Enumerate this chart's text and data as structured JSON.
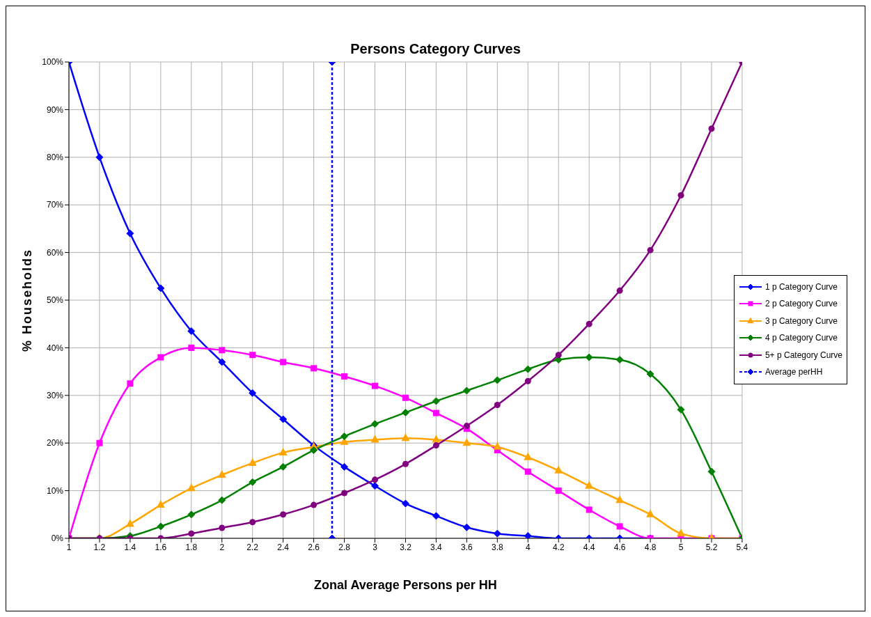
{
  "chart_data": {
    "type": "line",
    "title": "Persons Category Curves",
    "xlabel": "Zonal Average Persons per HH",
    "ylabel": "% Households",
    "x": [
      1,
      1.2,
      1.4,
      1.6,
      1.8,
      2,
      2.2,
      2.4,
      2.6,
      2.8,
      3,
      3.2,
      3.4,
      3.6,
      3.8,
      4,
      4.2,
      4.4,
      4.6,
      4.8,
      5,
      5.2,
      5.4
    ],
    "series": [
      {
        "name": "1 p Category Curve",
        "color": "#0000ff",
        "marker": "diamond",
        "values": [
          100,
          80,
          64,
          52.5,
          43.5,
          37,
          30.5,
          25,
          19.5,
          15,
          11,
          7.3,
          4.7,
          2.3,
          1,
          0.5,
          0,
          0,
          0,
          0,
          null,
          null,
          null
        ]
      },
      {
        "name": "2 p Category Curve",
        "color": "#ff00ff",
        "marker": "square",
        "values": [
          0,
          20,
          32.5,
          38,
          40,
          39.5,
          38.5,
          37,
          35.7,
          34,
          32,
          29.5,
          26.3,
          23,
          18.5,
          14,
          10,
          6,
          2.5,
          0,
          0,
          0,
          0
        ]
      },
      {
        "name": "3 p Category Curve",
        "color": "#ffa500",
        "marker": "triangle",
        "values": [
          0,
          0,
          3,
          7,
          10.5,
          13.3,
          15.8,
          18,
          19.2,
          20.2,
          20.7,
          21,
          20.7,
          20,
          19.2,
          17,
          14.2,
          11,
          8,
          5,
          1,
          0,
          0
        ]
      },
      {
        "name": "4 p Category Curve",
        "color": "#008000",
        "marker": "diamond",
        "values": [
          0,
          0,
          0.5,
          2.5,
          5,
          8,
          11.8,
          15,
          18.5,
          21.4,
          24,
          26.4,
          28.8,
          31,
          33.2,
          35.5,
          37.5,
          38,
          37.5,
          34.5,
          27,
          14,
          0
        ]
      },
      {
        "name": "5+ p Category Curve",
        "color": "#800080",
        "marker": "circle",
        "values": [
          0,
          0,
          0,
          0,
          1,
          2.2,
          3.4,
          5,
          7,
          9.5,
          12.3,
          15.6,
          19.5,
          23.6,
          28,
          33,
          38.5,
          45,
          52,
          60.5,
          72,
          86,
          100
        ]
      },
      {
        "name": "Average perHH",
        "color": "#0000ff",
        "marker": "diamond",
        "line_style": "dashed",
        "x": [
          2.72,
          2.72
        ],
        "values": [
          0,
          100
        ]
      }
    ],
    "xlim": [
      1,
      5.4
    ],
    "xticks": [
      1,
      1.2,
      1.4,
      1.6,
      1.8,
      2,
      2.2,
      2.4,
      2.6,
      2.8,
      3,
      3.2,
      3.4,
      3.6,
      3.8,
      4,
      4.2,
      4.4,
      4.6,
      4.8,
      5,
      5.2,
      5.4
    ],
    "ylim": [
      0,
      100
    ],
    "yticks": [
      {
        "value": 0,
        "label": "0%"
      },
      {
        "value": 10,
        "label": "10%"
      },
      {
        "value": 20,
        "label": "20%"
      },
      {
        "value": 30,
        "label": "30%"
      },
      {
        "value": 40,
        "label": "40%"
      },
      {
        "value": 50,
        "label": "50%"
      },
      {
        "value": 60,
        "label": "60%"
      },
      {
        "value": 70,
        "label": "70%"
      },
      {
        "value": 80,
        "label": "80%"
      },
      {
        "value": 90,
        "label": "90%"
      },
      {
        "value": 100,
        "label": "100%"
      }
    ],
    "grid": true,
    "legend": "right"
  }
}
